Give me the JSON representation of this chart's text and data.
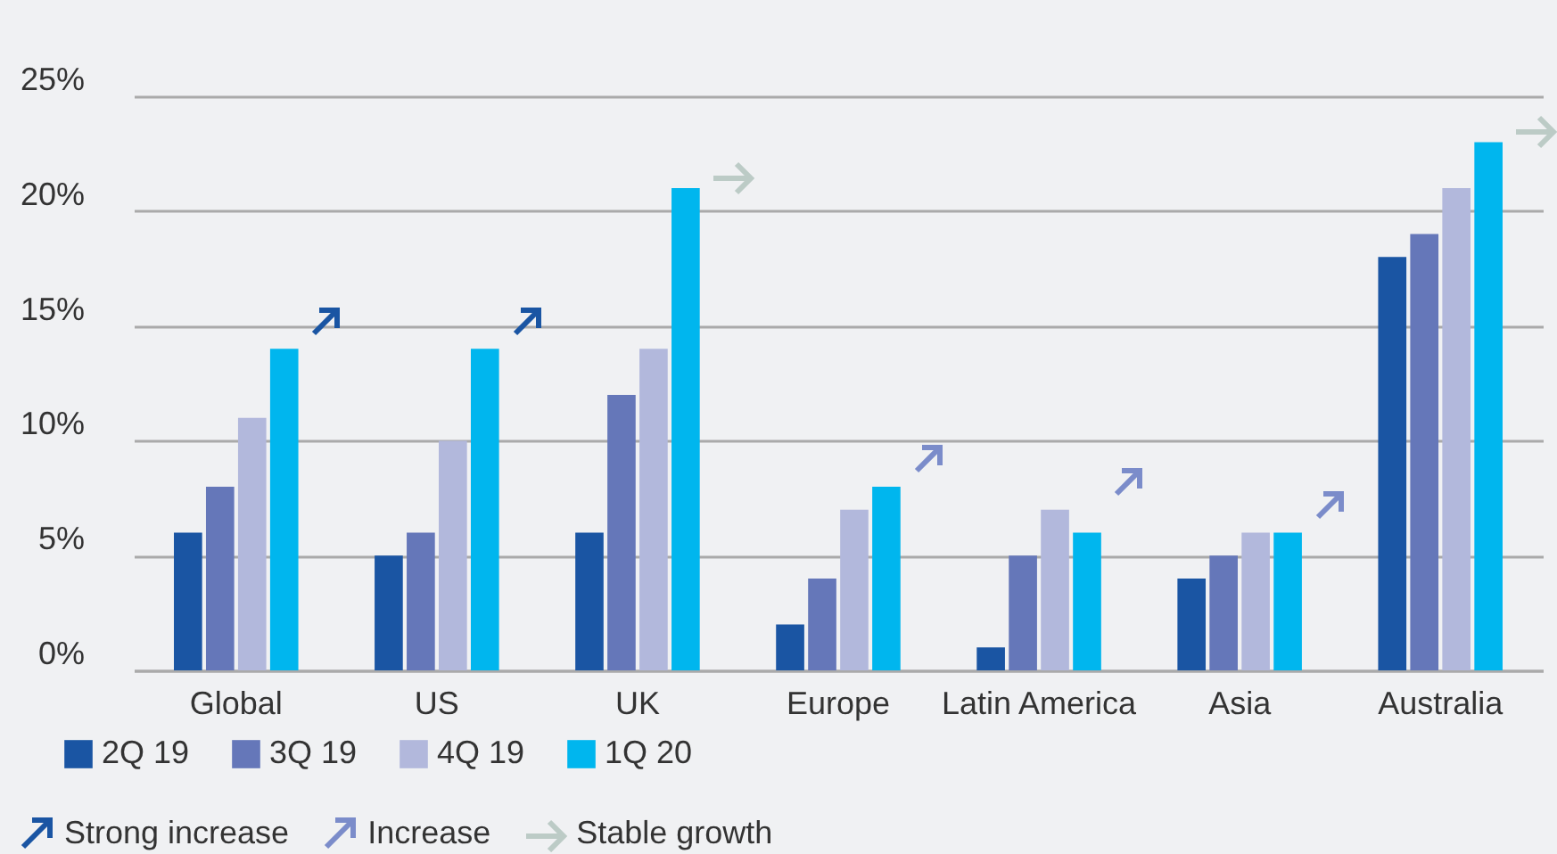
{
  "chart_data": {
    "type": "bar",
    "categories": [
      "Global",
      "US",
      "UK",
      "Europe",
      "Latin America",
      "Asia",
      "Australia"
    ],
    "series": [
      {
        "name": "2Q 19",
        "color": "#1a55a3",
        "values": [
          6,
          5,
          6,
          2,
          1,
          4,
          18
        ]
      },
      {
        "name": "3Q 19",
        "color": "#6577b9",
        "values": [
          8,
          6,
          12,
          4,
          5,
          5,
          19
        ]
      },
      {
        "name": "4Q 19",
        "color": "#b2b8dc",
        "values": [
          11,
          10,
          14,
          7,
          7,
          6,
          21
        ]
      },
      {
        "name": "1Q 20",
        "color": "#00b6ee",
        "values": [
          14,
          14,
          21,
          8,
          6,
          6,
          23
        ]
      }
    ],
    "ylim": [
      0,
      25
    ],
    "yticks": [
      {
        "value": 0,
        "label": "0%"
      },
      {
        "value": 5,
        "label": "5%"
      },
      {
        "value": 10,
        "label": "10%"
      },
      {
        "value": 15,
        "label": "15%"
      },
      {
        "value": 20,
        "label": "20%"
      },
      {
        "value": 25,
        "label": "25%"
      }
    ],
    "grid": "y",
    "legend": "bottom left",
    "annotations": [
      "Strong increase",
      "Increase",
      "Stable growth"
    ]
  }
}
